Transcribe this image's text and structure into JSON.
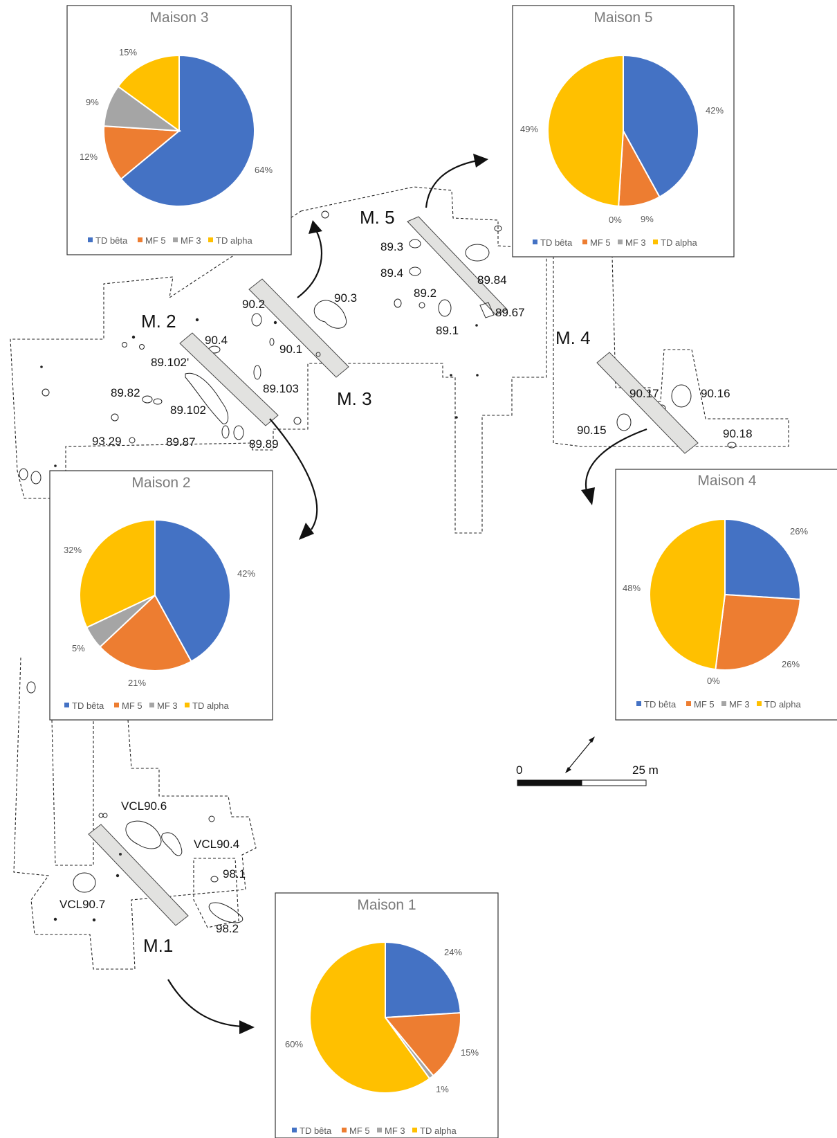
{
  "labels": [
    {
      "text": "M. 5",
      "cls": "mlbl"
    },
    {
      "text": "M. 2",
      "cls": "mlbl"
    },
    {
      "text": "M. 3",
      "cls": "mlbl"
    },
    {
      "text": "M. 4",
      "cls": "mlbl"
    },
    {
      "text": "M.1",
      "cls": "mlbl"
    },
    {
      "text": "89.3",
      "cls": "lbl"
    },
    {
      "text": "89.4",
      "cls": "lbl"
    },
    {
      "text": "89.2",
      "cls": "lbl"
    },
    {
      "text": "89.84",
      "cls": "lbl"
    },
    {
      "text": "89.67",
      "cls": "lbl"
    },
    {
      "text": "89.1",
      "cls": "lbl"
    },
    {
      "text": "90.2",
      "cls": "lbl"
    },
    {
      "text": "90.3",
      "cls": "lbl"
    },
    {
      "text": "90.4",
      "cls": "lbl"
    },
    {
      "text": "90.1",
      "cls": "lbl"
    },
    {
      "text": "89.102'",
      "cls": "lbl"
    },
    {
      "text": "89.103",
      "cls": "lbl"
    },
    {
      "text": "89.82",
      "cls": "lbl"
    },
    {
      "text": "89.102",
      "cls": "lbl"
    },
    {
      "text": "93.29",
      "cls": "lbl"
    },
    {
      "text": "89.87",
      "cls": "lbl"
    },
    {
      "text": "89.89",
      "cls": "lbl"
    },
    {
      "text": "90.17",
      "cls": "lbl"
    },
    {
      "text": "90.16",
      "cls": "lbl"
    },
    {
      "text": "90.15",
      "cls": "lbl"
    },
    {
      "text": "90.18",
      "cls": "lbl"
    },
    {
      "text": "VCL90.6",
      "cls": "lbl"
    },
    {
      "text": "VCL90.4",
      "cls": "lbl"
    },
    {
      "text": "98.1",
      "cls": "lbl"
    },
    {
      "text": "VCL90.7",
      "cls": "lbl"
    },
    {
      "text": "98.2",
      "cls": "lbl"
    }
  ],
  "scale": {
    "zero": "0",
    "end": "25 m"
  },
  "colors": {
    "TD bêta": "#4472c4",
    "MF 5": "#ed7d31",
    "MF 3": "#a5a5a5",
    "TD alpha": "#ffc000"
  },
  "chart_data": [
    {
      "type": "pie",
      "title": "Maison 3",
      "categories": [
        "TD bêta",
        "MF 5",
        "MF 3",
        "TD alpha"
      ],
      "values": [
        64,
        12,
        9,
        15
      ],
      "labels": [
        "64%",
        "12%",
        "9%",
        "15%"
      ],
      "legend": [
        "TD bêta",
        "MF 5",
        "MF 3",
        "TD alpha"
      ]
    },
    {
      "type": "pie",
      "title": "Maison 5",
      "categories": [
        "TD bêta",
        "MF 5",
        "MF 3",
        "TD alpha"
      ],
      "values": [
        42,
        9,
        0,
        49
      ],
      "labels": [
        "42%",
        "9%",
        "0%",
        "49%"
      ],
      "legend": [
        "TD bêta",
        "MF 5",
        "MF 3",
        "TD alpha"
      ]
    },
    {
      "type": "pie",
      "title": "Maison 2",
      "categories": [
        "TD bêta",
        "MF 5",
        "MF 3",
        "TD alpha"
      ],
      "values": [
        42,
        21,
        5,
        32
      ],
      "labels": [
        "42%",
        "21%",
        "5%",
        "32%"
      ],
      "legend": [
        "TD bêta",
        "MF 5",
        "MF 3",
        "TD alpha"
      ]
    },
    {
      "type": "pie",
      "title": "Maison 4",
      "categories": [
        "TD bêta",
        "MF 5",
        "MF 3",
        "TD alpha"
      ],
      "values": [
        26,
        26,
        0,
        48
      ],
      "labels": [
        "26%",
        "26%",
        "0%",
        "48%"
      ],
      "legend": [
        "TD bêta",
        "MF 5",
        "MF 3",
        "TD alpha"
      ]
    },
    {
      "type": "pie",
      "title": "Maison 1",
      "categories": [
        "TD bêta",
        "MF 5",
        "MF 3",
        "TD alpha"
      ],
      "values": [
        24,
        15,
        1,
        60
      ],
      "labels": [
        "24%",
        "15%",
        "1%",
        "60%"
      ],
      "legend": [
        "TD bêta",
        "MF 5",
        "MF 3",
        "TD alpha"
      ]
    }
  ]
}
